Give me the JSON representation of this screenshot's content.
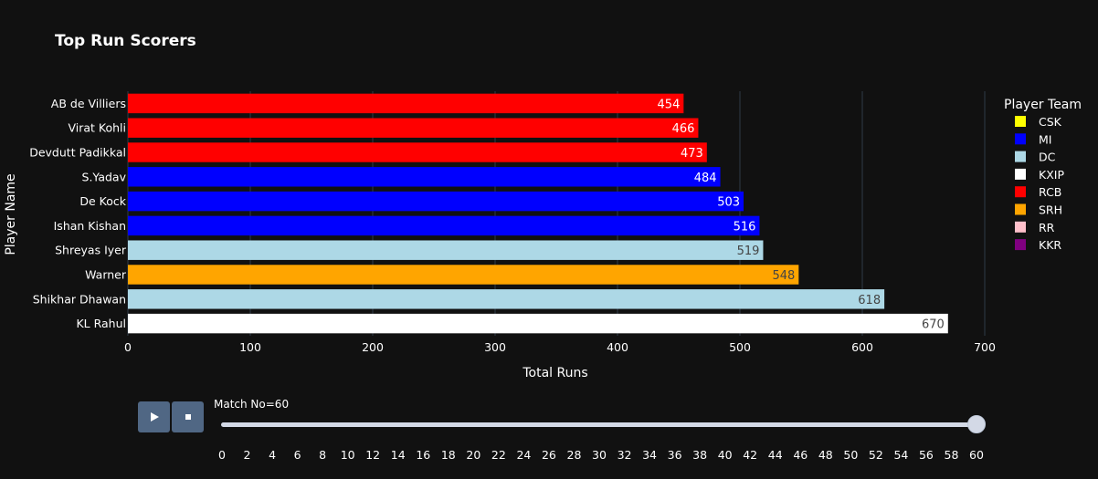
{
  "chart_data": {
    "type": "bar",
    "orientation": "horizontal",
    "title": "Top Run Scorers",
    "xlabel": "Total Runs",
    "ylabel": "Player Name",
    "xlim": [
      0,
      700
    ],
    "xticks": [
      0,
      100,
      200,
      300,
      400,
      500,
      600,
      700
    ],
    "grid": true,
    "categories": [
      "AB de Villiers",
      "Virat Kohli",
      "Devdutt Padikkal",
      "S.Yadav",
      "De Kock",
      "Ishan Kishan",
      "Shreyas Iyer",
      "Warner",
      "Shikhar Dhawan",
      "KL Rahul"
    ],
    "values": [
      454,
      466,
      473,
      484,
      503,
      516,
      519,
      548,
      618,
      670
    ],
    "teams": [
      "RCB",
      "RCB",
      "RCB",
      "MI",
      "MI",
      "MI",
      "DC",
      "SRH",
      "DC",
      "KXIP"
    ],
    "legend": {
      "title": "Player Team",
      "placement": "right",
      "entries": [
        {
          "name": "CSK",
          "color": "#ffff00"
        },
        {
          "name": "MI",
          "color": "#0000ff"
        },
        {
          "name": "DC",
          "color": "#add8e6"
        },
        {
          "name": "KXIP",
          "color": "#ffffff"
        },
        {
          "name": "RCB",
          "color": "#ff0000"
        },
        {
          "name": "SRH",
          "color": "#ffa500"
        },
        {
          "name": "RR",
          "color": "#ffc0cb"
        },
        {
          "name": "KKR",
          "color": "#800080"
        }
      ]
    }
  },
  "animation": {
    "current_label": "Match No=60",
    "current_value": 60,
    "steps": [
      "0",
      "2",
      "4",
      "6",
      "8",
      "10",
      "12",
      "14",
      "16",
      "18",
      "20",
      "22",
      "24",
      "26",
      "28",
      "30",
      "32",
      "34",
      "36",
      "38",
      "40",
      "42",
      "44",
      "46",
      "48",
      "50",
      "52",
      "54",
      "56",
      "58",
      "60"
    ]
  },
  "controls": {
    "play_icon": "play-icon",
    "stop_icon": "stop-icon"
  }
}
